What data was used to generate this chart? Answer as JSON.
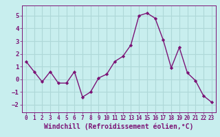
{
  "x": [
    0,
    1,
    2,
    3,
    4,
    5,
    6,
    7,
    8,
    9,
    10,
    11,
    12,
    13,
    14,
    15,
    16,
    17,
    18,
    19,
    20,
    21,
    22,
    23
  ],
  "y": [
    1.4,
    0.6,
    -0.2,
    0.6,
    -0.3,
    -0.3,
    0.6,
    -1.4,
    -1.0,
    0.1,
    0.4,
    1.4,
    1.8,
    2.7,
    5.0,
    5.2,
    4.8,
    3.1,
    0.9,
    2.5,
    0.5,
    -0.1,
    -1.3,
    -1.8
  ],
  "line_color": "#7b1275",
  "marker": "D",
  "marker_size": 2.2,
  "bg_color": "#c8eeee",
  "grid_color": "#aed8d8",
  "xlabel": "Windchill (Refroidissement éolien,°C)",
  "xlabel_fontsize": 7,
  "xtick_fontsize": 5.5,
  "ytick_fontsize": 6.5,
  "ylim": [
    -2.6,
    5.8
  ],
  "xlim": [
    -0.5,
    23.5
  ],
  "xticks": [
    0,
    1,
    2,
    3,
    4,
    5,
    6,
    7,
    8,
    9,
    10,
    11,
    12,
    13,
    14,
    15,
    16,
    17,
    18,
    19,
    20,
    21,
    22,
    23
  ],
  "yticks": [
    -2,
    -1,
    0,
    1,
    2,
    3,
    4,
    5
  ],
  "line_width": 1.0
}
